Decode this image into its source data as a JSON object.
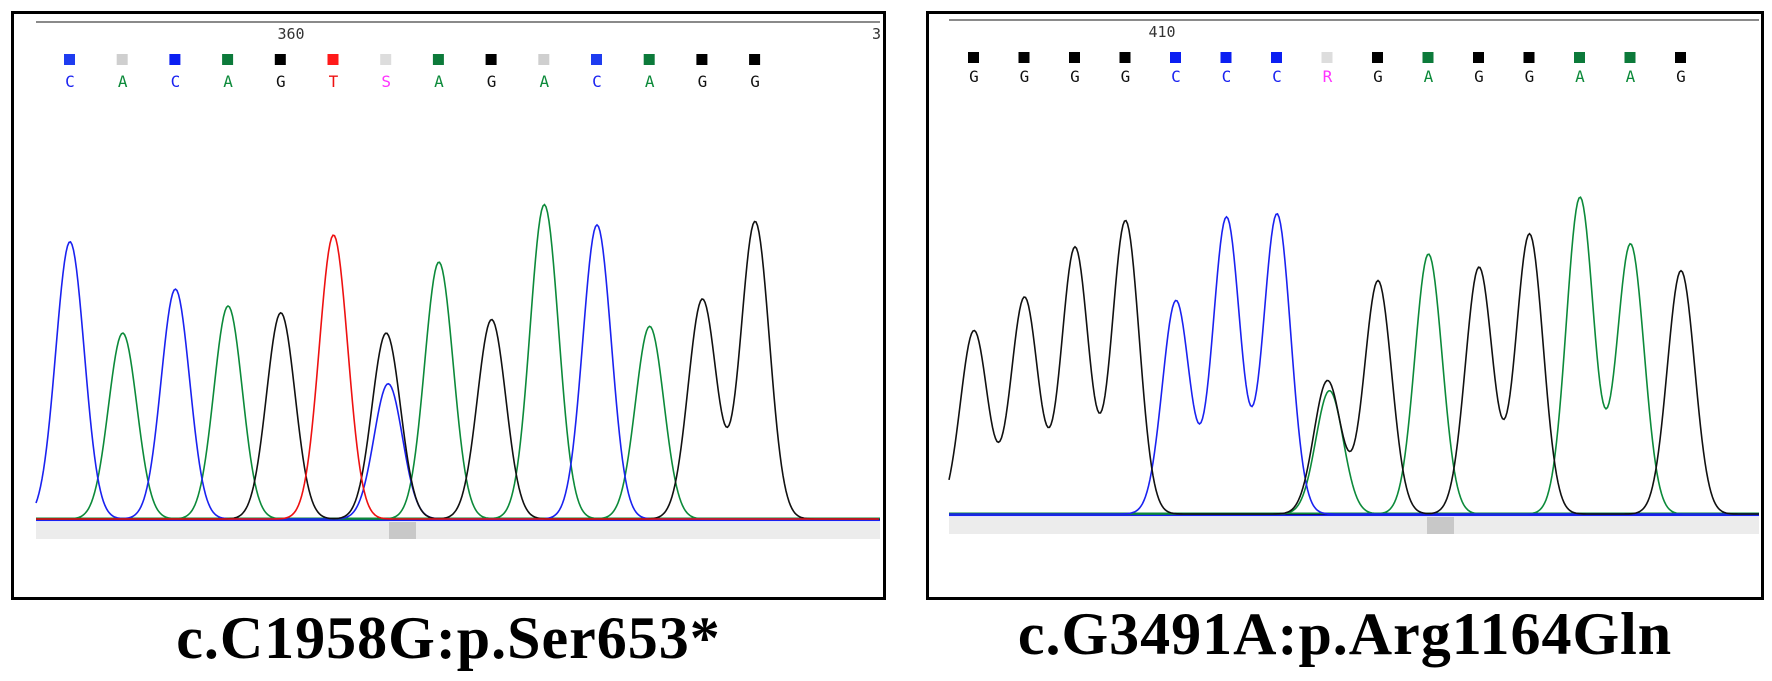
{
  "chart_data": [
    {
      "type": "line",
      "caption": "c.C1958G:p.Ser653*",
      "position_label": "360",
      "trailing_label": "3",
      "bases": [
        "C",
        "A",
        "C",
        "A",
        "G",
        "T",
        "S",
        "A",
        "G",
        "A",
        "C",
        "A",
        "G",
        "G"
      ],
      "quality_colors": [
        "#1e3cf0",
        "#cfcfcf",
        "#0b1ff2",
        "#0c7a3a",
        "#000000",
        "#ff1a1a",
        "#dddddd",
        "#0c7a3a",
        "#000000",
        "#cfcfcf",
        "#1e3cf0",
        "#0c7a3a",
        "#000000",
        "#000000"
      ],
      "peak_heights": [
        0.82,
        0.55,
        0.68,
        0.63,
        0.61,
        0.84,
        0.55,
        0.76,
        0.59,
        0.93,
        0.87,
        0.57,
        0.65,
        0.88
      ],
      "secondary_peaks": [
        {
          "index": 6,
          "base": "C",
          "height": 0.4
        }
      ],
      "ylim": [
        0,
        1.05
      ]
    },
    {
      "type": "line",
      "caption": "c.G3491A:p.Arg1164Gln",
      "position_label": "410",
      "bases": [
        "G",
        "G",
        "G",
        "G",
        "C",
        "C",
        "C",
        "R",
        "G",
        "A",
        "G",
        "G",
        "A",
        "A",
        "G"
      ],
      "quality_colors": [
        "#000000",
        "#000000",
        "#000000",
        "#000000",
        "#0b1ff2",
        "#0b1ff2",
        "#0b1ff2",
        "#dddddd",
        "#000000",
        "#0c7a3a",
        "#000000",
        "#000000",
        "#0c7a3a",
        "#0c7a3a",
        "#000000"
      ],
      "peak_heights": [
        0.55,
        0.65,
        0.8,
        0.88,
        0.64,
        0.89,
        0.9,
        0.4,
        0.7,
        0.78,
        0.74,
        0.84,
        0.95,
        0.81,
        0.73
      ],
      "secondary_peaks": [
        {
          "index": 7,
          "base": "A",
          "height": 0.37
        }
      ],
      "ylim": [
        0,
        1.05
      ]
    }
  ],
  "colors": {
    "A": "#0c8a3a",
    "C": "#1a22f0",
    "G": "#111111",
    "T": "#ee1111",
    "ambiguous": "#ff33ff"
  }
}
